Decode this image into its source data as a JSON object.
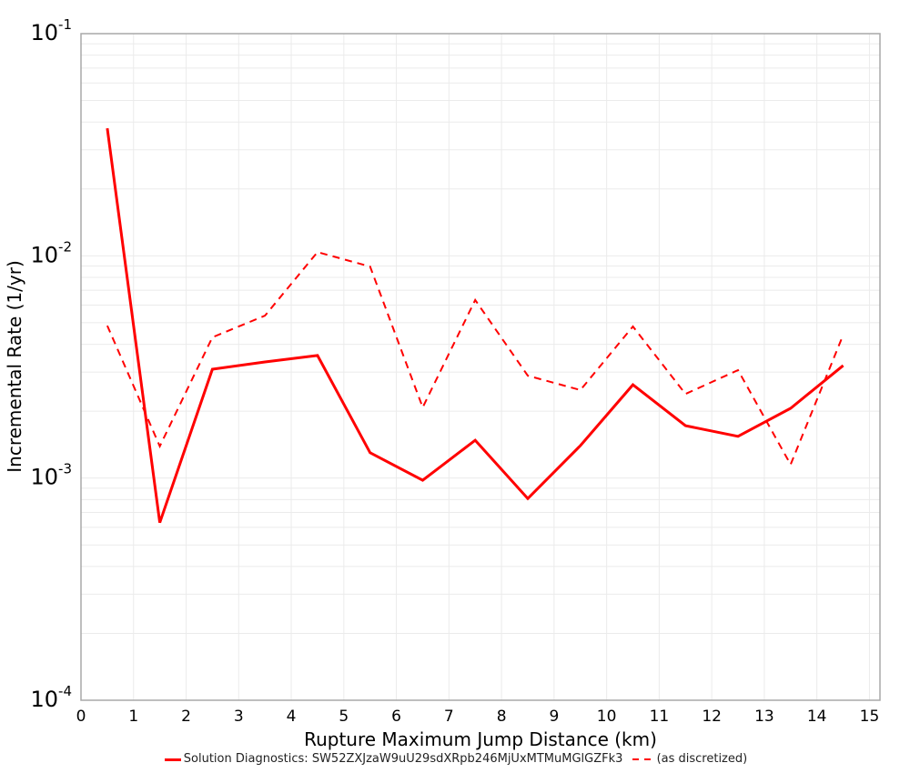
{
  "chart_data": {
    "type": "line",
    "title": "",
    "xlabel": "Rupture Maximum Jump Distance (km)",
    "ylabel": "Incremental Rate (1/yr)",
    "xlim": [
      0,
      15.2
    ],
    "ylim": [
      0.0001,
      0.1
    ],
    "yscale": "log",
    "grid": true,
    "legend_position": "bottom",
    "x_ticks": [
      "0",
      "1",
      "2",
      "3",
      "4",
      "5",
      "6",
      "7",
      "8",
      "9",
      "10",
      "11",
      "12",
      "13",
      "14",
      "15"
    ],
    "y_ticks": [
      {
        "base": "10",
        "exp": "-1",
        "value": 0.1
      },
      {
        "base": "10",
        "exp": "-2",
        "value": 0.01
      },
      {
        "base": "10",
        "exp": "-3",
        "value": 0.001
      },
      {
        "base": "10",
        "exp": "-4",
        "value": 0.0001
      }
    ],
    "x": [
      0.5,
      1.5,
      2.5,
      3.5,
      4.5,
      5.5,
      6.5,
      7.5,
      8.5,
      9.5,
      10.5,
      11.5,
      12.5,
      13.5,
      14.5
    ],
    "series": [
      {
        "name": "Solution Diagnostics: SW52ZXJzaW9uU29sdXRpb246MjUxMTMuMGlGZFk3",
        "style": "solid",
        "color": "#ff0000",
        "values": [
          0.0375,
          0.00063,
          0.00309,
          0.00333,
          0.00356,
          0.0013,
          0.000977,
          0.00148,
          0.000809,
          0.0014,
          0.00263,
          0.00172,
          0.00154,
          0.00206,
          0.00321
        ]
      },
      {
        "name": "(as discretized)",
        "style": "dashed",
        "color": "#ff0000",
        "values": [
          0.00485,
          0.00139,
          0.0043,
          0.00538,
          0.0104,
          0.00895,
          0.00208,
          0.00633,
          0.00289,
          0.00249,
          0.00481,
          0.00239,
          0.00306,
          0.00115,
          0.00441
        ]
      }
    ]
  },
  "legend": {
    "items": [
      {
        "label": "Solution Diagnostics: SW52ZXJzaW9uU29sdXRpb246MjUxMTMuMGlGZFk3"
      },
      {
        "label": "(as discretized)"
      }
    ]
  }
}
